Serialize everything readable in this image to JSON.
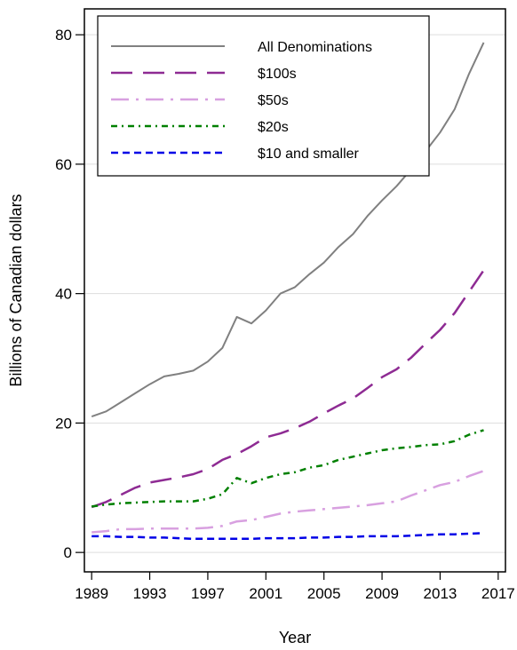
{
  "chart_data": {
    "type": "line",
    "title": "",
    "xlabel": "Year",
    "ylabel": "Billions of Canadian dollars",
    "xlim": [
      1988.5,
      2017.5
    ],
    "ylim": [
      -3,
      84
    ],
    "x_ticks": [
      1989,
      1993,
      1997,
      2001,
      2005,
      2009,
      2013,
      2017
    ],
    "y_ticks": [
      0,
      20,
      40,
      60,
      80
    ],
    "grid": "horizontal",
    "legend_position": "top-left",
    "x": [
      1989,
      1990,
      1991,
      1992,
      1993,
      1994,
      1995,
      1996,
      1997,
      1998,
      1999,
      2000,
      2001,
      2002,
      2003,
      2004,
      2005,
      2006,
      2007,
      2008,
      2009,
      2010,
      2011,
      2012,
      2013,
      2014,
      2015,
      2016
    ],
    "series": [
      {
        "name": "All Denominations",
        "color": "#808080",
        "dash": "solid",
        "values": [
          21.0,
          21.8,
          23.2,
          24.6,
          26.0,
          27.2,
          27.6,
          28.1,
          29.5,
          31.6,
          36.4,
          35.4,
          37.4,
          40.0,
          41.0,
          43.0,
          44.8,
          47.2,
          49.2,
          52.0,
          54.4,
          56.6,
          59.2,
          62.0,
          64.9,
          68.5,
          74.0,
          78.8
        ]
      },
      {
        "name": "$100s",
        "color": "#8e2b93",
        "dash": "long",
        "values": [
          7.0,
          7.8,
          8.9,
          10.0,
          10.8,
          11.2,
          11.6,
          12.1,
          12.9,
          14.3,
          15.2,
          16.4,
          17.8,
          18.4,
          19.2,
          20.2,
          21.5,
          22.7,
          23.8,
          25.4,
          27.1,
          28.3,
          30.1,
          32.3,
          34.4,
          37.0,
          40.3,
          43.6
        ]
      },
      {
        "name": "$50s",
        "color": "#d8a0e0",
        "dash": "longdot",
        "values": [
          3.1,
          3.3,
          3.6,
          3.6,
          3.7,
          3.7,
          3.7,
          3.7,
          3.8,
          4.1,
          4.8,
          5.0,
          5.5,
          6.0,
          6.3,
          6.5,
          6.7,
          6.9,
          7.1,
          7.3,
          7.6,
          7.9,
          8.8,
          9.6,
          10.4,
          10.9,
          11.8,
          12.6
        ]
      },
      {
        "name": "$20s",
        "color": "#008000",
        "dash": "dashdot",
        "values": [
          7.1,
          7.4,
          7.6,
          7.7,
          7.8,
          7.9,
          7.9,
          7.9,
          8.3,
          9.0,
          11.5,
          10.7,
          11.5,
          12.1,
          12.4,
          13.1,
          13.5,
          14.3,
          14.8,
          15.3,
          15.8,
          16.1,
          16.3,
          16.6,
          16.7,
          17.2,
          18.2,
          18.9
        ]
      },
      {
        "name": "$10 and smaller",
        "color": "#0000e6",
        "dash": "short",
        "values": [
          2.5,
          2.5,
          2.4,
          2.4,
          2.3,
          2.3,
          2.2,
          2.1,
          2.1,
          2.1,
          2.1,
          2.1,
          2.2,
          2.2,
          2.2,
          2.3,
          2.3,
          2.4,
          2.4,
          2.5,
          2.5,
          2.5,
          2.6,
          2.7,
          2.8,
          2.8,
          2.9,
          3.0
        ]
      }
    ]
  }
}
